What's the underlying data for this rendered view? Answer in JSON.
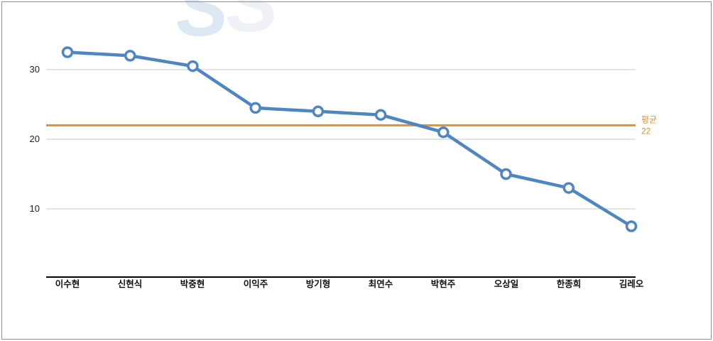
{
  "chart_data": {
    "type": "line",
    "title": "",
    "xlabel": "",
    "ylabel": "",
    "categories": [
      "이수현",
      "신현식",
      "박중현",
      "이익주",
      "방기형",
      "최연수",
      "박현주",
      "오상일",
      "한종희",
      "김레오"
    ],
    "values": [
      32.5,
      32,
      30.5,
      24.5,
      24,
      23.5,
      21,
      15,
      13,
      7.5
    ],
    "line_color": "#4e86c2",
    "marker_fill": "#ffffff",
    "yticks": [
      "30",
      "20",
      "10"
    ],
    "ytick_values": [
      30,
      20,
      10
    ],
    "ylim": [
      0,
      35
    ],
    "grid": true,
    "legend": "none",
    "average_line": {
      "value": 22,
      "label": "평균",
      "value_text": "22",
      "color": "#dd9138"
    }
  },
  "colors": {
    "grid": "#c8c8c8",
    "axis": "#000000",
    "frame": "#8f8f8f",
    "watermark_blue": "#dce8f3",
    "watermark_gray": "#eef1f5"
  }
}
